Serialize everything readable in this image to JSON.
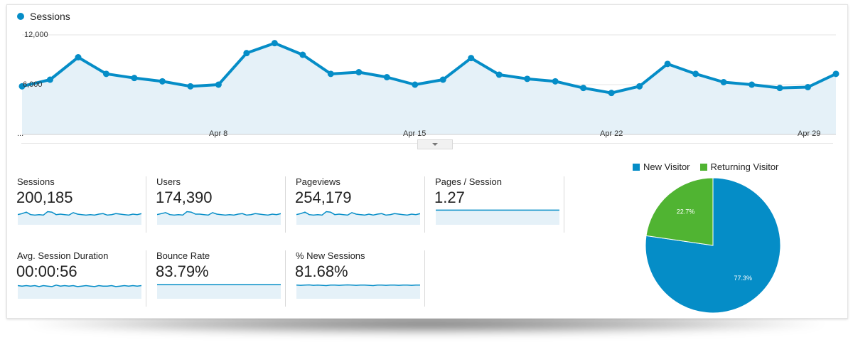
{
  "colors": {
    "accent": "#058dc7",
    "fill": "#e5f1f8",
    "returning": "#50b432"
  },
  "chart_data": [
    {
      "type": "line",
      "legend": "Sessions",
      "y_ticks": [
        "12,000",
        "6,000"
      ],
      "x_ticks": [
        "...",
        "Apr 8",
        "Apr 15",
        "Apr 22",
        "Apr 29"
      ],
      "ylim": [
        0,
        12000
      ],
      "series": [
        {
          "name": "Sessions",
          "values": [
            5800,
            6600,
            9300,
            7300,
            6800,
            6400,
            5800,
            6000,
            9800,
            11000,
            9600,
            7300,
            7500,
            6900,
            6000,
            6600,
            9200,
            7200,
            6700,
            6400,
            5600,
            5000,
            5800,
            8500,
            7300,
            6300,
            6000,
            5600,
            5700,
            7300
          ]
        }
      ]
    },
    {
      "type": "pie",
      "legend": [
        "New Visitor",
        "Returning Visitor"
      ],
      "values": [
        77.3,
        22.7
      ],
      "labels": [
        "77.3%",
        "22.7%"
      ]
    }
  ],
  "metrics": [
    {
      "label": "Sessions",
      "value": "200,185",
      "spark": [
        0.55,
        0.45,
        0.3,
        0.55,
        0.6,
        0.55,
        0.6,
        0.25,
        0.3,
        0.55,
        0.5,
        0.55,
        0.6,
        0.35,
        0.5,
        0.55,
        0.6,
        0.55,
        0.6,
        0.5,
        0.45,
        0.6,
        0.55,
        0.45,
        0.5,
        0.55,
        0.6,
        0.5,
        0.55,
        0.45
      ],
      "flat": false
    },
    {
      "label": "Users",
      "value": "174,390",
      "spark": [
        0.55,
        0.45,
        0.35,
        0.55,
        0.6,
        0.55,
        0.6,
        0.25,
        0.3,
        0.5,
        0.5,
        0.55,
        0.6,
        0.35,
        0.5,
        0.55,
        0.6,
        0.55,
        0.6,
        0.5,
        0.45,
        0.6,
        0.55,
        0.45,
        0.5,
        0.55,
        0.6,
        0.5,
        0.55,
        0.45
      ],
      "flat": false
    },
    {
      "label": "Pageviews",
      "value": "254,179",
      "spark": [
        0.55,
        0.45,
        0.3,
        0.55,
        0.6,
        0.55,
        0.6,
        0.25,
        0.3,
        0.55,
        0.5,
        0.55,
        0.6,
        0.35,
        0.5,
        0.55,
        0.6,
        0.5,
        0.6,
        0.5,
        0.45,
        0.6,
        0.55,
        0.45,
        0.5,
        0.55,
        0.6,
        0.5,
        0.55,
        0.45
      ],
      "flat": false
    },
    {
      "label": "Pages / Session",
      "value": "1.27",
      "spark": [
        0.1,
        0.1,
        0.1,
        0.1,
        0.1,
        0.1,
        0.1,
        0.1,
        0.1,
        0.1,
        0.1,
        0.1,
        0.1,
        0.1,
        0.1,
        0.1,
        0.1,
        0.1,
        0.1,
        0.1,
        0.1,
        0.1,
        0.1,
        0.1,
        0.1,
        0.1,
        0.1,
        0.1,
        0.1,
        0.1
      ],
      "flat": true
    },
    {
      "label": "Avg. Session Duration",
      "value": "00:00:56",
      "spark": [
        0.25,
        0.3,
        0.25,
        0.3,
        0.25,
        0.35,
        0.25,
        0.3,
        0.35,
        0.2,
        0.3,
        0.25,
        0.3,
        0.25,
        0.35,
        0.3,
        0.25,
        0.3,
        0.35,
        0.25,
        0.3,
        0.3,
        0.25,
        0.35,
        0.3,
        0.25,
        0.3,
        0.25,
        0.3,
        0.25
      ],
      "flat": true
    },
    {
      "label": "Bounce Rate",
      "value": "83.79%",
      "spark": [
        0.15,
        0.15,
        0.15,
        0.15,
        0.15,
        0.15,
        0.15,
        0.15,
        0.15,
        0.15,
        0.15,
        0.15,
        0.15,
        0.15,
        0.15,
        0.15,
        0.15,
        0.15,
        0.15,
        0.15,
        0.15,
        0.15,
        0.15,
        0.15,
        0.15,
        0.15,
        0.15,
        0.15,
        0.15,
        0.15
      ],
      "flat": true
    },
    {
      "label": "% New Sessions",
      "value": "81.68%",
      "spark": [
        0.2,
        0.22,
        0.2,
        0.18,
        0.22,
        0.2,
        0.22,
        0.25,
        0.2,
        0.2,
        0.22,
        0.2,
        0.18,
        0.2,
        0.22,
        0.2,
        0.2,
        0.22,
        0.25,
        0.2,
        0.2,
        0.22,
        0.2,
        0.2,
        0.22,
        0.2,
        0.2,
        0.22,
        0.2,
        0.2
      ],
      "flat": true
    }
  ]
}
